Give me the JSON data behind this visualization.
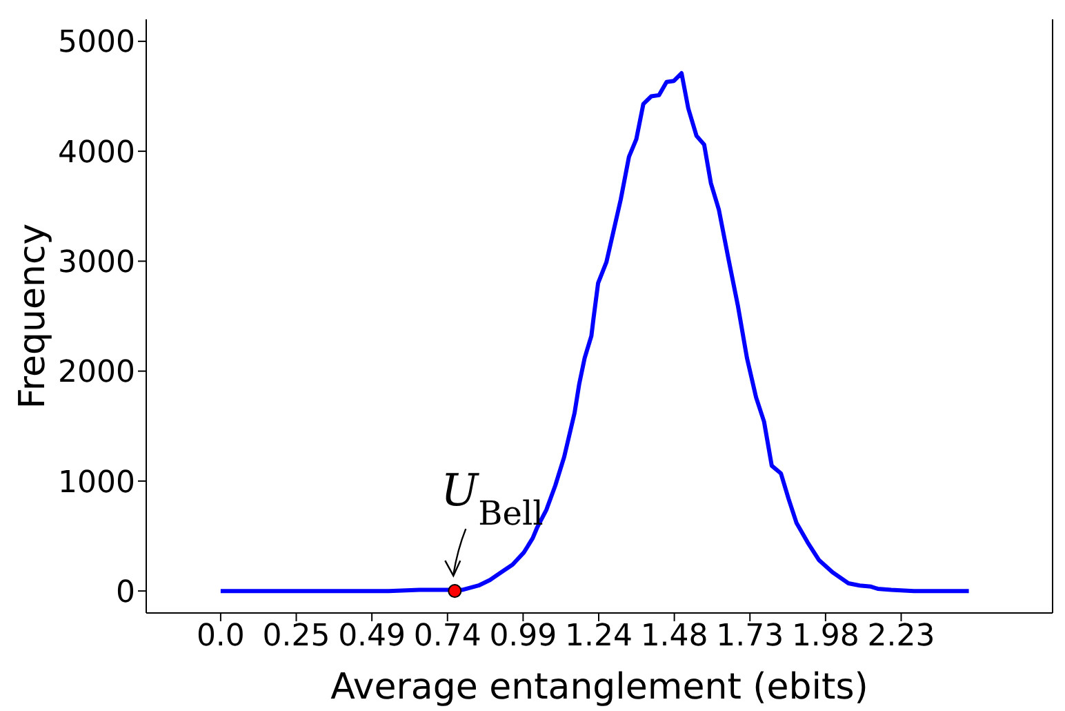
{
  "chart_data": {
    "type": "line",
    "xlabel": "Average entanglement (ebits)",
    "ylabel": "Frequency",
    "xlim": [
      -0.2435,
      2.722
    ],
    "ylim": [
      -200,
      5200
    ],
    "xticks": [
      {
        "value": 0,
        "label": "0.0"
      },
      {
        "value": 0.2474,
        "label": "0.25"
      },
      {
        "value": 0.4948,
        "label": "0.49"
      },
      {
        "value": 0.7422,
        "label": "0.74"
      },
      {
        "value": 0.9896,
        "label": "0.99"
      },
      {
        "value": 1.237,
        "label": "1.24"
      },
      {
        "value": 1.4844,
        "label": "1.48"
      },
      {
        "value": 1.7318,
        "label": "1.73"
      },
      {
        "value": 1.9792,
        "label": "1.98"
      },
      {
        "value": 2.2266,
        "label": "2.23"
      }
    ],
    "yticks": [
      0,
      1000,
      2000,
      3000,
      4000,
      5000
    ],
    "grid": false,
    "line_style": "solid",
    "series": [
      {
        "color": "#0000ff",
        "marker": "none",
        "x": [
          0,
          0.2,
          0.4,
          0.55,
          0.65,
          0.72,
          0.79,
          0.844,
          0.881,
          0.918,
          0.955,
          0.992,
          1.021,
          1.036,
          1.066,
          1.095,
          1.124,
          1.158,
          1.173,
          1.191,
          1.213,
          1.22,
          1.235,
          1.262,
          1.309,
          1.336,
          1.36,
          1.383,
          1.409,
          1.434,
          1.459,
          1.483,
          1.508,
          1.53,
          1.557,
          1.582,
          1.604,
          1.63,
          1.663,
          1.692,
          1.722,
          1.752,
          1.778,
          1.803,
          1.833,
          1.858,
          1.884,
          1.921,
          1.958,
          2.002,
          2.054,
          2.091,
          2.128,
          2.15,
          2.194,
          2.268,
          2.35,
          2.448
        ],
        "values": [
          0,
          0,
          0,
          0,
          10,
          10,
          10,
          50,
          100,
          170,
          240,
          350,
          480,
          580,
          740,
          960,
          1220,
          1620,
          1880,
          2120,
          2320,
          2480,
          2800,
          2990,
          3560,
          3950,
          4110,
          4430,
          4500,
          4510,
          4630,
          4640,
          4710,
          4390,
          4140,
          4060,
          3710,
          3470,
          3000,
          2600,
          2120,
          1760,
          1540,
          1140,
          1070,
          840,
          620,
          440,
          280,
          170,
          70,
          50,
          40,
          20,
          10,
          0,
          0,
          0
        ]
      },
      {
        "type": "scatter",
        "color": "#ff0000",
        "marker": "circle",
        "x": [
          0.766
        ],
        "values": [
          0
        ]
      }
    ],
    "annotations": [
      {
        "text": "U$_{Bell}$",
        "x": 0.766,
        "y": 0
      }
    ]
  }
}
